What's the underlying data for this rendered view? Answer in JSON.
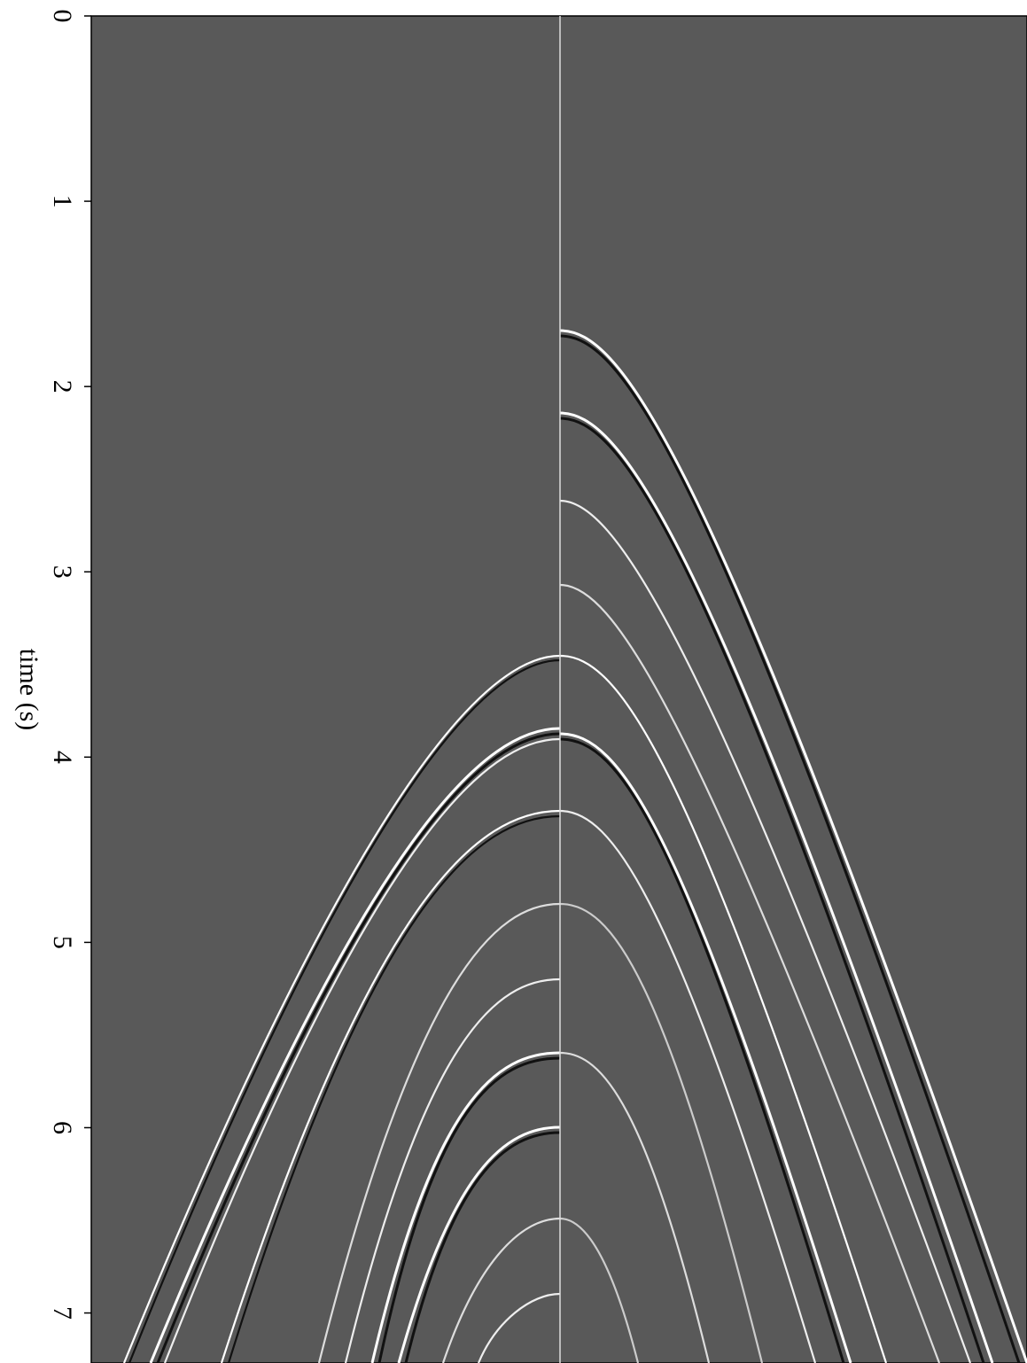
{
  "chart_data": {
    "type": "seismic",
    "ylabel": "time (s)",
    "ylim": [
      0,
      7.27
    ],
    "yticks": [
      0,
      1,
      2,
      3,
      4,
      5,
      6,
      7
    ]
  }
}
